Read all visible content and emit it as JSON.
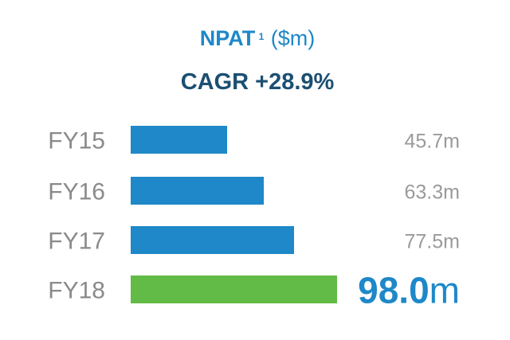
{
  "chart_data": {
    "type": "bar",
    "orientation": "horizontal",
    "title": {
      "main": "NPAT",
      "superscript": "1",
      "unit": "($m)"
    },
    "subtitle": "CAGR +28.9%",
    "categories": [
      "FY15",
      "FY16",
      "FY17",
      "FY18"
    ],
    "values": [
      45.7,
      63.3,
      77.5,
      98.0
    ],
    "value_labels": [
      {
        "number": "45.7",
        "suffix": "m"
      },
      {
        "number": "63.3",
        "suffix": "m"
      },
      {
        "number": "77.5",
        "suffix": "m"
      },
      {
        "number": "98.0",
        "suffix": "m"
      }
    ],
    "highlight_index": 3,
    "xlim": [
      0,
      100
    ],
    "grid": false,
    "legend": "none"
  },
  "colors": {
    "title": "#1e88c8",
    "subtitle": "#1b4f72",
    "bar": "#1e88c8",
    "bar_highlight": "#62bb46",
    "category_label": "#8a8a8a",
    "value_label": "#9a9a9a",
    "value_label_highlight": "#1e88c8"
  }
}
